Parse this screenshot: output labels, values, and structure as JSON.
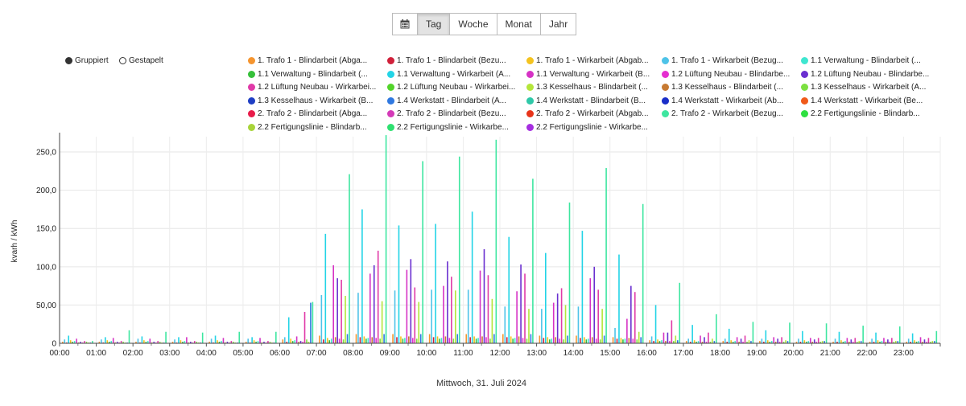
{
  "toolbar": {
    "calendar_icon": "calendar-icon",
    "tabs": [
      "Tag",
      "Woche",
      "Monat",
      "Jahr"
    ],
    "active": "Tag"
  },
  "mode": {
    "grouped": "Gruppiert",
    "stacked": "Gestapelt",
    "selected": "Gruppiert"
  },
  "legend": [
    {
      "label": "1. Trafo 1 - Blindarbeit (Abga...",
      "color": "#f5952f"
    },
    {
      "label": "1. Trafo 1 - Blindarbeit (Bezu...",
      "color": "#d0203a"
    },
    {
      "label": "1. Trafo 1 - Wirkarbeit (Abgab...",
      "color": "#f4c31f"
    },
    {
      "label": "1. Trafo 1 - Wirkarbeit (Bezug...",
      "color": "#4ec3e8"
    },
    {
      "label": "1.1 Verwaltung - Blindarbeit (...",
      "color": "#3fe6d0"
    },
    {
      "label": "1.1 Verwaltung - Blindarbeit (...",
      "color": "#36c03a"
    },
    {
      "label": "1.1 Verwaltung - Wirkarbeit (A...",
      "color": "#22d4e6"
    },
    {
      "label": "1.1 Verwaltung - Wirkarbeit (B...",
      "color": "#d632c5"
    },
    {
      "label": "1.2 Lüftung Neubau - Blindarbe...",
      "color": "#e52fd0"
    },
    {
      "label": "1.2 Lüftung Neubau - Blindarbe...",
      "color": "#6a2fd0"
    },
    {
      "label": "1.2 Lüftung Neubau - Wirkarbei...",
      "color": "#e03aa8"
    },
    {
      "label": "1.2 Lüftung Neubau - Wirkarbei...",
      "color": "#52d42a"
    },
    {
      "label": "1.3 Kesselhaus - Blindarbeit (...",
      "color": "#b4e63a"
    },
    {
      "label": "1.3 Kesselhaus - Blindarbeit (...",
      "color": "#c77a32"
    },
    {
      "label": "1.3 Kesselhaus - Wirkarbeit (A...",
      "color": "#7ce040"
    },
    {
      "label": "1.3 Kesselhaus - Wirkarbeit (B...",
      "color": "#1f3fc4"
    },
    {
      "label": "1.4 Werkstatt - Blindarbeit (A...",
      "color": "#2f78e0"
    },
    {
      "label": "1.4 Werkstatt - Blindarbeit (B...",
      "color": "#2fc8a8"
    },
    {
      "label": "1.4 Werkstatt - Wirkarbeit (Ab...",
      "color": "#1a2ec8"
    },
    {
      "label": "1.4 Werkstatt - Wirkarbeit (Be...",
      "color": "#f05a1a"
    },
    {
      "label": "2. Trafo 2 - Blindarbeit (Abga...",
      "color": "#e81c4a"
    },
    {
      "label": "2. Trafo 2 - Blindarbeit (Bezu...",
      "color": "#d43ab8"
    },
    {
      "label": "2. Trafo 2 - Wirkarbeit (Abgab...",
      "color": "#e8341a"
    },
    {
      "label": "2. Trafo 2 - Wirkarbeit (Bezug...",
      "color": "#3ee6a0"
    },
    {
      "label": "2.2 Fertigungslinie - Blindarb...",
      "color": "#2ee040"
    },
    {
      "label": "2.2 Fertigungslinie - Blindarb...",
      "color": "#a8d43a"
    },
    {
      "label": "2.2 Fertigungslinie - Wirkarbe...",
      "color": "#2ee070"
    },
    {
      "label": "2.2 Fertigungslinie - Wirkarbe...",
      "color": "#a52ee0"
    }
  ],
  "chart_data": {
    "type": "bar",
    "ylabel": "kvarh / kWh",
    "xlabel": "Mittwoch, 31. Juli 2024",
    "ylim": [
      0,
      270
    ],
    "yticks": [
      "0",
      "50,00",
      "100,0",
      "150,0",
      "200,0",
      "250,0"
    ],
    "x_ticks": [
      "00:00",
      "01:00",
      "02:00",
      "03:00",
      "04:00",
      "05:00",
      "06:00",
      "07:00",
      "08:00",
      "09:00",
      "10:00",
      "11:00",
      "12:00",
      "13:00",
      "14:00",
      "15:00",
      "16:00",
      "17:00",
      "18:00",
      "19:00",
      "20:00",
      "21:00",
      "22:00",
      "23:00"
    ],
    "grid": true,
    "hours": [
      {
        "hour": "00:00",
        "bars": [
          2,
          5,
          1,
          10,
          4,
          2,
          3,
          6,
          1,
          2,
          1,
          3,
          2,
          1,
          1,
          3
        ]
      },
      {
        "hour": "01:00",
        "bars": [
          2,
          5,
          1,
          8,
          4,
          2,
          3,
          7,
          1,
          2,
          1,
          3,
          2,
          1,
          1,
          17
        ]
      },
      {
        "hour": "02:00",
        "bars": [
          2,
          6,
          1,
          9,
          4,
          2,
          3,
          6,
          1,
          2,
          1,
          3,
          2,
          1,
          1,
          15
        ]
      },
      {
        "hour": "03:00",
        "bars": [
          2,
          5,
          1,
          8,
          4,
          2,
          3,
          8,
          1,
          2,
          1,
          3,
          2,
          1,
          1,
          14
        ]
      },
      {
        "hour": "04:00",
        "bars": [
          2,
          6,
          1,
          10,
          4,
          2,
          3,
          7,
          1,
          2,
          1,
          3,
          2,
          1,
          1,
          15
        ]
      },
      {
        "hour": "05:00",
        "bars": [
          2,
          6,
          1,
          8,
          4,
          2,
          3,
          7,
          1,
          2,
          1,
          3,
          2,
          1,
          1,
          15
        ]
      },
      {
        "hour": "06:00",
        "bars": [
          5,
          8,
          2,
          34,
          6,
          3,
          4,
          9,
          2,
          3,
          2,
          41,
          5,
          2,
          53,
          54
        ]
      },
      {
        "hour": "07:00",
        "bars": [
          10,
          63,
          5,
          143,
          7,
          4,
          6,
          102,
          8,
          85,
          6,
          83,
          5,
          62,
          12,
          221
        ]
      },
      {
        "hour": "08:00",
        "bars": [
          12,
          66,
          8,
          175,
          9,
          6,
          7,
          91,
          8,
          102,
          7,
          121,
          6,
          55,
          12,
          272
        ]
      },
      {
        "hour": "09:00",
        "bars": [
          12,
          69,
          8,
          154,
          9,
          6,
          7,
          96,
          9,
          110,
          7,
          73,
          6,
          54,
          12,
          238
        ]
      },
      {
        "hour": "10:00",
        "bars": [
          12,
          70,
          8,
          156,
          9,
          6,
          7,
          75,
          9,
          107,
          7,
          87,
          6,
          69,
          12,
          244
        ]
      },
      {
        "hour": "11:00",
        "bars": [
          12,
          70,
          8,
          172,
          9,
          6,
          7,
          95,
          9,
          123,
          8,
          89,
          6,
          58,
          12,
          266
        ]
      },
      {
        "hour": "12:00",
        "bars": [
          12,
          48,
          8,
          139,
          9,
          6,
          7,
          68,
          9,
          103,
          7,
          91,
          6,
          45,
          12,
          215
        ]
      },
      {
        "hour": "13:00",
        "bars": [
          10,
          45,
          7,
          118,
          8,
          5,
          6,
          53,
          8,
          65,
          6,
          72,
          5,
          50,
          10,
          184
        ]
      },
      {
        "hour": "14:00",
        "bars": [
          10,
          48,
          7,
          147,
          8,
          5,
          6,
          85,
          8,
          100,
          6,
          70,
          5,
          45,
          10,
          229
        ]
      },
      {
        "hour": "15:00",
        "bars": [
          8,
          20,
          6,
          116,
          7,
          5,
          6,
          32,
          7,
          75,
          6,
          67,
          5,
          15,
          8,
          182
        ]
      },
      {
        "hour": "16:00",
        "bars": [
          4,
          9,
          3,
          50,
          5,
          3,
          4,
          14,
          3,
          14,
          3,
          30,
          3,
          10,
          4,
          79
        ]
      },
      {
        "hour": "17:00",
        "bars": [
          3,
          6,
          2,
          24,
          4,
          2,
          3,
          10,
          2,
          8,
          2,
          14,
          2,
          6,
          3,
          38
        ]
      },
      {
        "hour": "18:00",
        "bars": [
          3,
          6,
          2,
          19,
          4,
          2,
          3,
          8,
          2,
          6,
          2,
          10,
          2,
          4,
          3,
          28
        ]
      },
      {
        "hour": "19:00",
        "bars": [
          3,
          6,
          2,
          17,
          4,
          2,
          3,
          8,
          2,
          6,
          2,
          8,
          2,
          4,
          3,
          27
        ]
      },
      {
        "hour": "20:00",
        "bars": [
          2,
          6,
          2,
          16,
          4,
          2,
          3,
          7,
          2,
          5,
          2,
          7,
          2,
          3,
          3,
          26
        ]
      },
      {
        "hour": "21:00",
        "bars": [
          2,
          6,
          2,
          15,
          4,
          2,
          3,
          7,
          2,
          5,
          2,
          7,
          2,
          3,
          3,
          23
        ]
      },
      {
        "hour": "22:00",
        "bars": [
          2,
          6,
          2,
          14,
          4,
          2,
          3,
          7,
          2,
          5,
          2,
          7,
          2,
          3,
          3,
          22
        ]
      },
      {
        "hour": "23:00",
        "bars": [
          2,
          6,
          2,
          13,
          4,
          2,
          3,
          8,
          2,
          5,
          2,
          7,
          2,
          3,
          3,
          16
        ]
      }
    ]
  }
}
